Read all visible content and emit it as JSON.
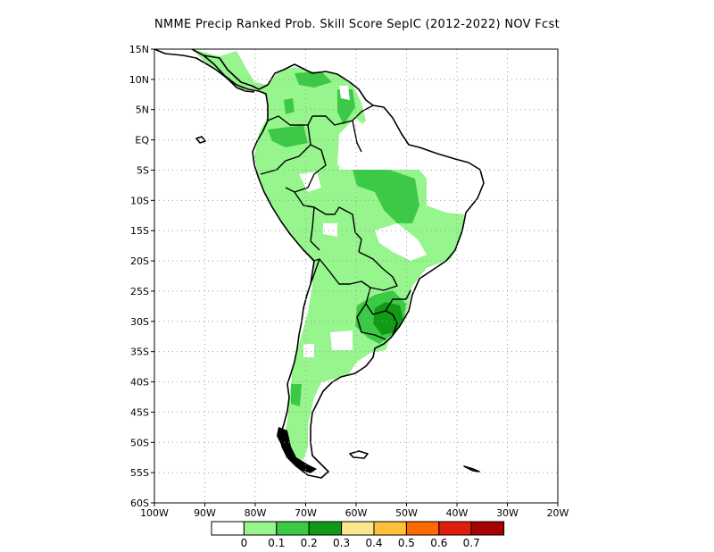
{
  "title": "NMME Precip Ranked Prob. Skill Score SepIC (2012-2022) NOV Fcst",
  "lat_ticks": [
    "15N",
    "10N",
    "5N",
    "EQ",
    "5S",
    "10S",
    "15S",
    "20S",
    "25S",
    "30S",
    "35S",
    "40S",
    "45S",
    "50S",
    "55S",
    "60S"
  ],
  "lon_ticks": [
    "100W",
    "90W",
    "80W",
    "70W",
    "60W",
    "50W",
    "40W",
    "30W",
    "20W"
  ],
  "colorbar": {
    "labels": [
      "0",
      "0.1",
      "0.2",
      "0.3",
      "0.4",
      "0.5",
      "0.6",
      "0.7"
    ],
    "colors": [
      "#ffffff",
      "#96f58c",
      "#3cca46",
      "#119a16",
      "#fae68c",
      "#ffc03c",
      "#ff6a00",
      "#e01c0c",
      "#a70000"
    ]
  },
  "colors": {
    "skill_light": "#96f58c",
    "skill_medium": "#3cca46",
    "skill_dark": "#119a16",
    "coastline": "#000000",
    "gridline": "#9a9a9a"
  }
}
